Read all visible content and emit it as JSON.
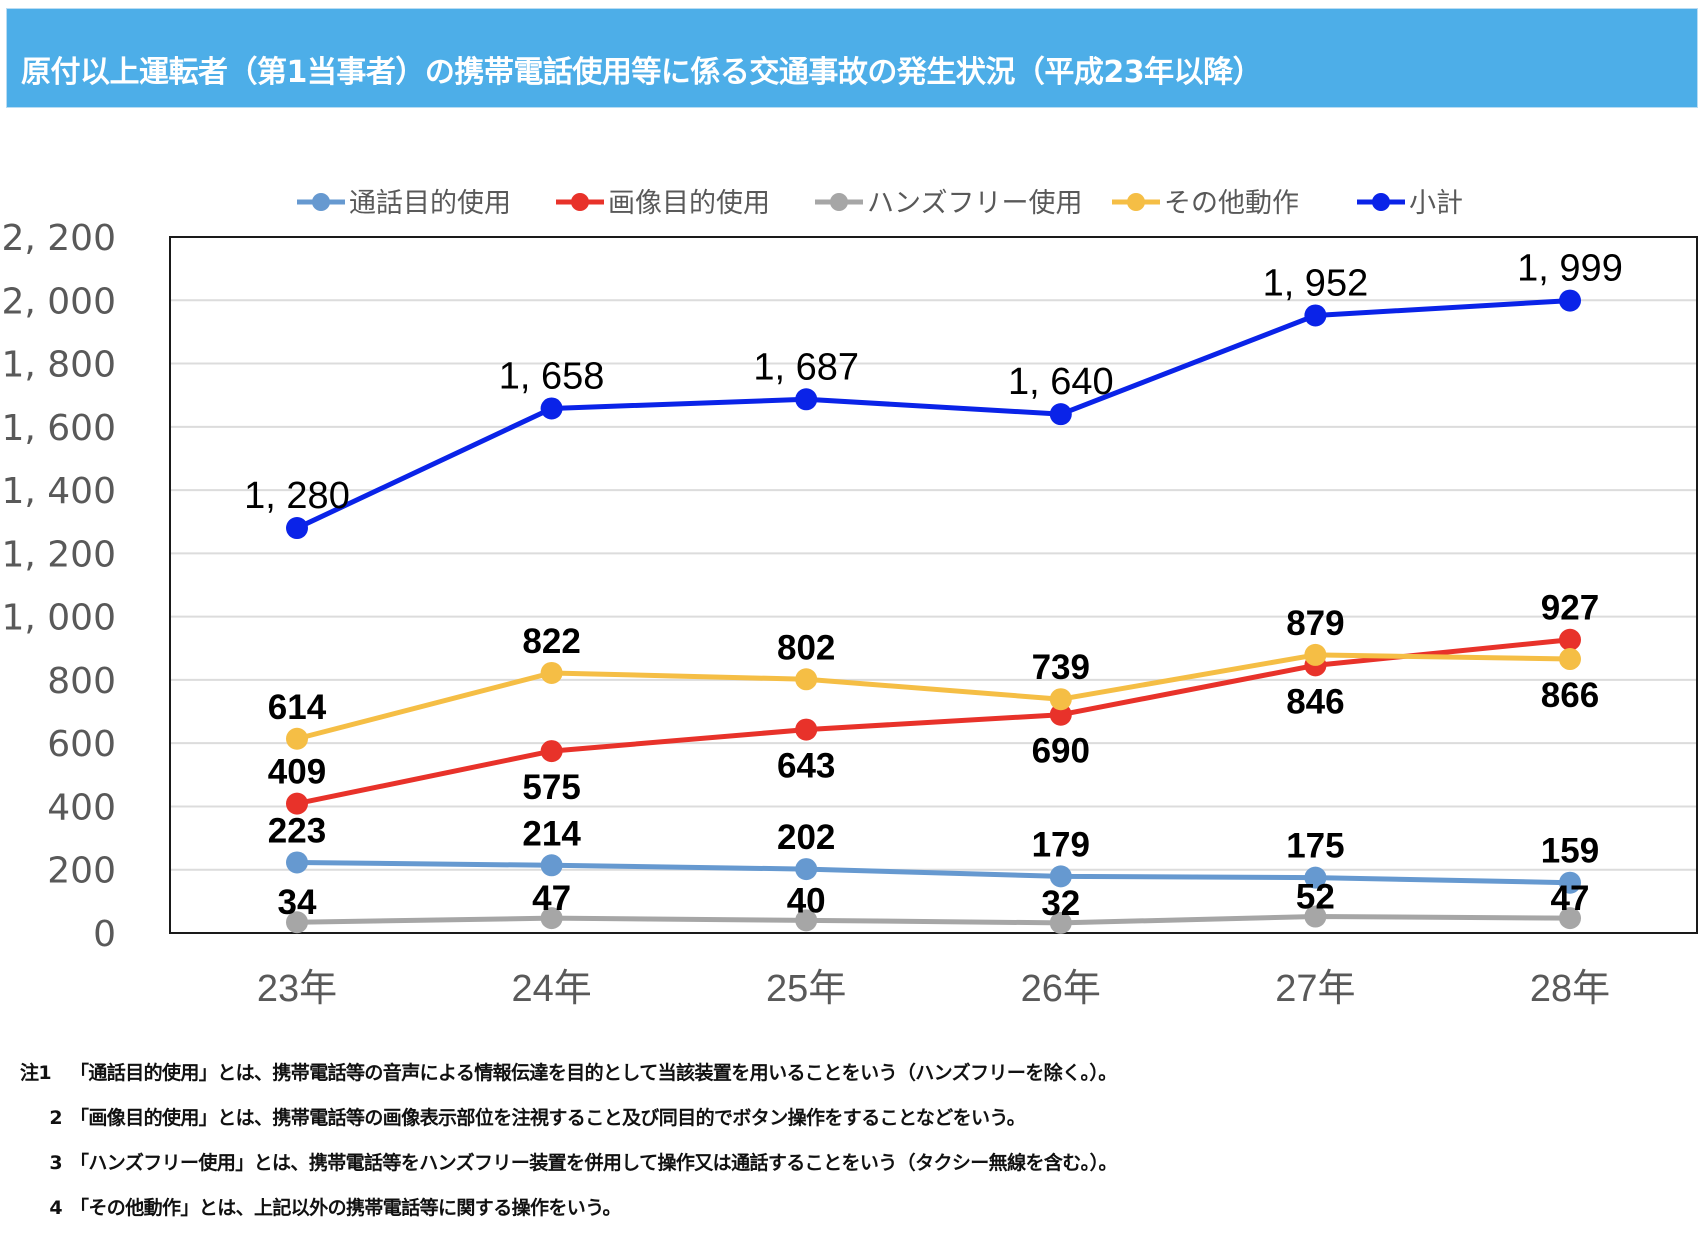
{
  "header": {
    "title": "原付以上運転者（第1当事者）の携帯電話使用等に係る交通事故の発生状況（平成23年以降）",
    "background_color": "#4daee8"
  },
  "chart_data": {
    "type": "line",
    "title": "原付以上運転者（第1当事者）の携帯電話使用等に係る交通事故の発生状況（平成23年以降）",
    "xlabel": "",
    "ylabel": "",
    "categories": [
      "23年",
      "24年",
      "25年",
      "26年",
      "27年",
      "28年"
    ],
    "ylim": [
      0,
      2200
    ],
    "yticks": [
      0,
      200,
      400,
      600,
      800,
      1000,
      1200,
      1400,
      1600,
      1800,
      2000,
      2200
    ],
    "ytick_labels": [
      "0",
      "200",
      "400",
      "600",
      "800",
      "1, 000",
      "1, 200",
      "1, 400",
      "1, 600",
      "1, 800",
      "2, 000",
      "2, 200"
    ],
    "grid": true,
    "legend_position": "top",
    "series": [
      {
        "name": "通話目的使用",
        "color": "#6699d0",
        "values": [
          223,
          214,
          202,
          179,
          175,
          159
        ],
        "labels": [
          "223",
          "214",
          "202",
          "179",
          "175",
          "159"
        ],
        "label_position": "above"
      },
      {
        "name": "画像目的使用",
        "color": "#e8322a",
        "values": [
          409,
          575,
          643,
          690,
          846,
          927
        ],
        "labels": [
          "409",
          "575",
          "643",
          "690",
          "846",
          "927"
        ],
        "label_position": [
          "above",
          "below",
          "below",
          "below",
          "below",
          "above"
        ]
      },
      {
        "name": "ハンズフリー使用",
        "color": "#a6a6a6",
        "values": [
          34,
          47,
          40,
          32,
          52,
          47
        ],
        "labels": [
          "34",
          "47",
          "40",
          "32",
          "52",
          "47"
        ],
        "label_position": "above-left"
      },
      {
        "name": "その他動作",
        "color": "#f5be45",
        "values": [
          614,
          822,
          802,
          739,
          879,
          866
        ],
        "labels": [
          "614",
          "822",
          "802",
          "739",
          "879",
          "866"
        ],
        "label_position": [
          "above",
          "above",
          "above",
          "above",
          "above",
          "below"
        ]
      },
      {
        "name": "小計",
        "color": "#0a23e8",
        "values": [
          1280,
          1658,
          1687,
          1640,
          1952,
          1999
        ],
        "labels": [
          "1, 280",
          "1, 658",
          "1, 687",
          "1, 640",
          "1, 952",
          "1, 999"
        ],
        "label_position": "above"
      }
    ]
  },
  "notes": [
    {
      "prefix": "注1",
      "text": "「通話目的使用」とは、携帯電話等の音声による情報伝達を目的として当該装置を用いることをいう（ハンズフリーを除く。）。"
    },
    {
      "prefix": "2",
      "text": "「画像目的使用」とは、携帯電話等の画像表示部位を注視すること及び同目的でボタン操作をすることなどをいう。"
    },
    {
      "prefix": "3",
      "text": "「ハンズフリー使用」とは、携帯電話等をハンズフリー装置を併用して操作又は通話することをいう（タクシー無線を含む。）。"
    },
    {
      "prefix": "4",
      "text": "「その他動作」とは、上記以外の携帯電話等に関する操作をいう。"
    }
  ]
}
